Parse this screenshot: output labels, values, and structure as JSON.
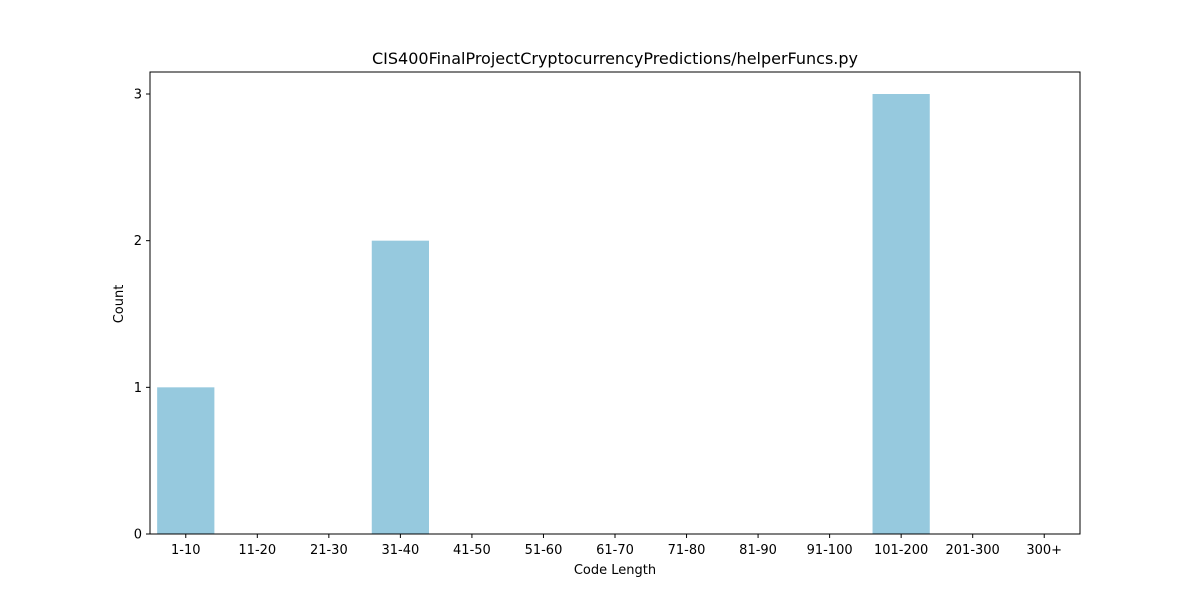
{
  "chart_data": {
    "type": "bar",
    "title": "CIS400FinalProjectCryptocurrencyPredictions/helperFuncs.py",
    "xlabel": "Code Length",
    "ylabel": "Count",
    "categories": [
      "1-10",
      "11-20",
      "21-30",
      "31-40",
      "41-50",
      "51-60",
      "61-70",
      "71-80",
      "81-90",
      "91-100",
      "101-200",
      "201-300",
      "300+"
    ],
    "values": [
      1,
      0,
      0,
      2,
      0,
      0,
      0,
      0,
      0,
      0,
      3,
      0,
      0
    ],
    "ylim": [
      0,
      3.15
    ],
    "yticks": [
      0,
      1,
      2,
      3
    ],
    "bar_color": "#96c9de",
    "grid": false,
    "legend": "none"
  }
}
